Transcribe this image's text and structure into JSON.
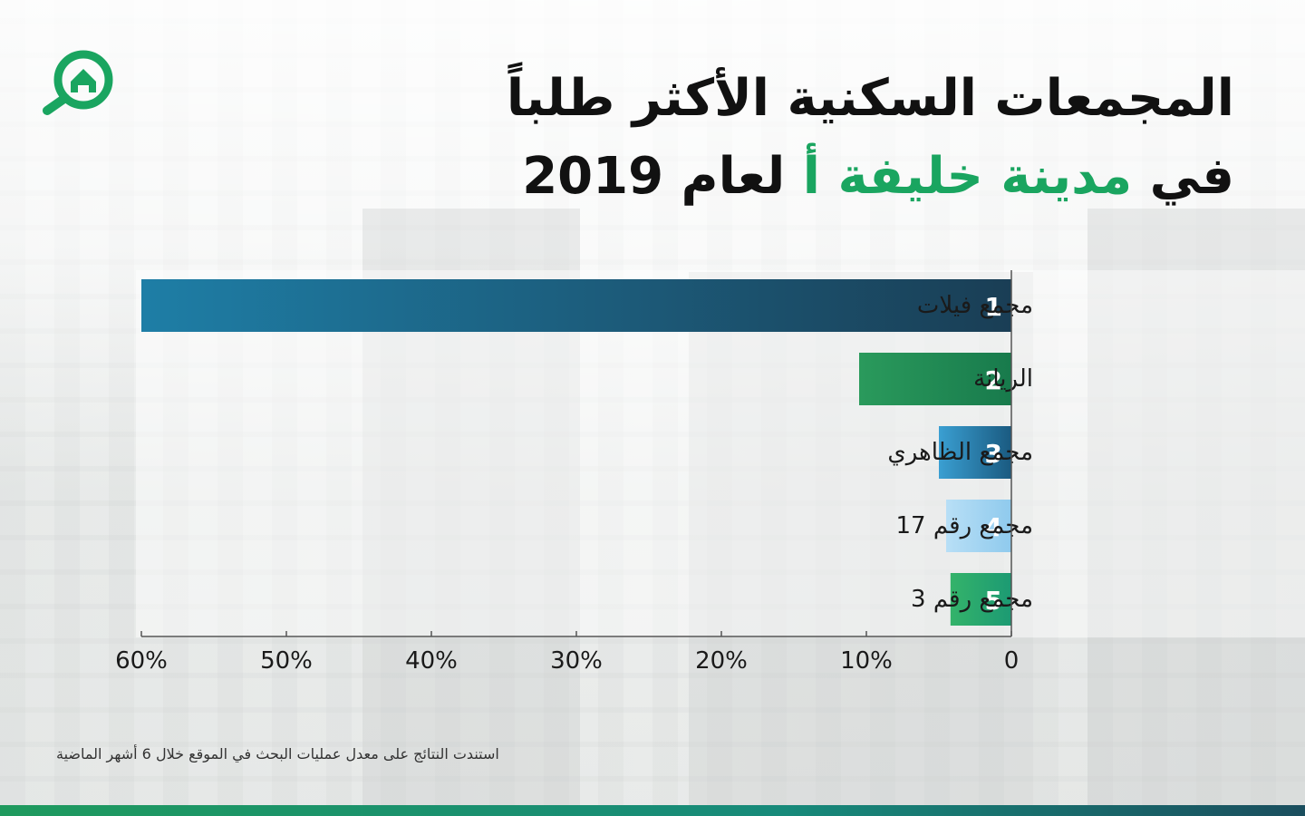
{
  "title": {
    "line1": "المجمعات السكنية الأكثر طلباً",
    "line2_prefix": "في ",
    "line2_highlight": "مدينة خليفة أ",
    "line2_suffix": " لعام 2019"
  },
  "footnote": "استندت النتائج على معدل عمليات البحث في الموقع خلال 6 أشهر الماضية",
  "colors": {
    "accent": "#1aa560",
    "bar1": [
      "#1e7ea6",
      "#1a3e55"
    ],
    "bar2": [
      "#2a9a5c",
      "#187a4c"
    ],
    "bar3": [
      "#3a9fd2",
      "#1a5a80"
    ],
    "bar4": [
      "#b8dff6",
      "#8fcaed"
    ],
    "bar5": [
      "#34b36a",
      "#1c9a73"
    ]
  },
  "logo_icon": "house-search-icon",
  "chart_data": {
    "type": "bar",
    "orientation": "horizontal",
    "direction": "right-to-left",
    "categories": [
      "مجمع فيلات",
      "الريانة",
      "مجمع الظاهري",
      "مجمع رقم 17",
      "مجمع رقم 3"
    ],
    "ranks": [
      "1",
      "2",
      "3",
      "4",
      "5"
    ],
    "values": [
      60,
      10.5,
      5,
      4.5,
      4.2
    ],
    "xlim": [
      0,
      60
    ],
    "xticks": [
      60,
      50,
      40,
      30,
      20,
      10,
      0
    ],
    "xtick_labels": [
      "60%",
      "50%",
      "40%",
      "30%",
      "20%",
      "10%",
      "0"
    ],
    "grid": false
  }
}
